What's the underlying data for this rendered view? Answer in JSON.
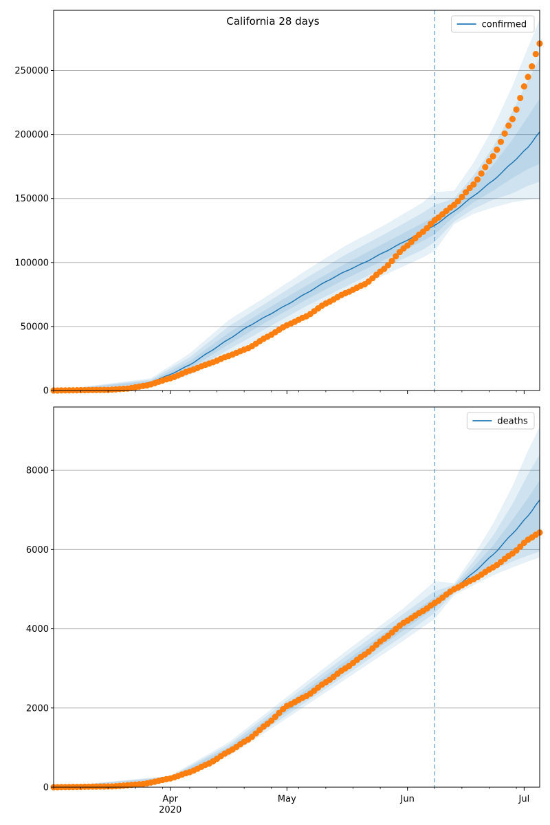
{
  "title": "California 28 days",
  "colors": {
    "model": "#1f77b4",
    "observed": "#ff7f0e",
    "band": "#1f77b4",
    "grid": "#b0b0b0",
    "axis": "#000000"
  },
  "chart_data": [
    {
      "type": "line",
      "title": "California 28 days",
      "legend": [
        "confirmed"
      ],
      "legend_position": "top-right",
      "grid": "horizontal",
      "x_start": "2020-03-02",
      "x_end": "2020-07-05",
      "xlim": [
        "2020-03-02",
        "2020-07-05"
      ],
      "ylim": [
        0,
        297000
      ],
      "y_ticks": [
        0,
        50000,
        100000,
        150000,
        200000,
        250000
      ],
      "x_ticks": [
        {
          "date": "2020-04-01",
          "label": "Apr",
          "sublabel": "2020"
        },
        {
          "date": "2020-05-01",
          "label": "May",
          "sublabel": ""
        },
        {
          "date": "2020-06-01",
          "label": "Jun",
          "sublabel": ""
        },
        {
          "date": "2020-07-01",
          "label": "Jul",
          "sublabel": ""
        }
      ],
      "forecast_start": "2020-06-08",
      "model_line": [
        [
          "2020-03-02",
          0
        ],
        [
          "2020-03-12",
          200
        ],
        [
          "2020-03-21",
          2000
        ],
        [
          "2020-03-27",
          6500
        ],
        [
          "2020-04-01",
          12500
        ],
        [
          "2020-04-06",
          20000
        ],
        [
          "2020-04-11",
          30000
        ],
        [
          "2020-04-16",
          40000
        ],
        [
          "2020-04-21",
          50000
        ],
        [
          "2020-04-26",
          58500
        ],
        [
          "2020-05-01",
          67000
        ],
        [
          "2020-05-06",
          76000
        ],
        [
          "2020-05-11",
          85000
        ],
        [
          "2020-05-16",
          93000
        ],
        [
          "2020-05-21",
          100000
        ],
        [
          "2020-05-26",
          108000
        ],
        [
          "2020-05-31",
          116000
        ],
        [
          "2020-06-05",
          124000
        ],
        [
          "2020-06-08",
          129000
        ],
        [
          "2020-06-13",
          140000
        ],
        [
          "2020-06-18",
          152000
        ],
        [
          "2020-06-23",
          164000
        ],
        [
          "2020-06-28",
          178000
        ],
        [
          "2020-07-02",
          190000
        ],
        [
          "2020-07-05",
          202000
        ]
      ],
      "band_inner": [
        [
          "2020-03-02",
          0,
          0
        ],
        [
          "2020-03-27",
          5500,
          7500
        ],
        [
          "2020-04-06",
          17000,
          23000
        ],
        [
          "2020-04-16",
          36000,
          45000
        ],
        [
          "2020-04-26",
          54000,
          64000
        ],
        [
          "2020-05-06",
          71000,
          82000
        ],
        [
          "2020-05-16",
          87000,
          99000
        ],
        [
          "2020-05-26",
          102000,
          115000
        ],
        [
          "2020-06-05",
          117000,
          131000
        ],
        [
          "2020-06-08",
          122000,
          136000
        ],
        [
          "2020-06-13",
          136000,
          145000
        ],
        [
          "2020-06-18",
          147000,
          160000
        ],
        [
          "2020-06-23",
          156000,
          176000
        ],
        [
          "2020-06-28",
          166000,
          196000
        ],
        [
          "2020-07-02",
          173000,
          214000
        ],
        [
          "2020-07-05",
          177000,
          228000
        ]
      ],
      "band_mid": [
        [
          "2020-03-02",
          0,
          0
        ],
        [
          "2020-03-27",
          4800,
          8500
        ],
        [
          "2020-04-06",
          14500,
          26000
        ],
        [
          "2020-04-16",
          32000,
          50000
        ],
        [
          "2020-04-26",
          49000,
          69000
        ],
        [
          "2020-05-06",
          66000,
          88000
        ],
        [
          "2020-05-16",
          81000,
          106000
        ],
        [
          "2020-05-26",
          96000,
          122000
        ],
        [
          "2020-06-05",
          110000,
          139000
        ],
        [
          "2020-06-08",
          116000,
          145000
        ],
        [
          "2020-06-13",
          132000,
          150000
        ],
        [
          "2020-06-18",
          142000,
          168000
        ],
        [
          "2020-06-23",
          149000,
          190000
        ],
        [
          "2020-06-28",
          154000,
          218000
        ],
        [
          "2020-07-02",
          160000,
          242000
        ],
        [
          "2020-07-05",
          163000,
          260000
        ]
      ],
      "band_outer": [
        [
          "2020-03-02",
          0,
          0
        ],
        [
          "2020-03-27",
          4000,
          9500
        ],
        [
          "2020-04-06",
          12000,
          29000
        ],
        [
          "2020-04-16",
          28000,
          55000
        ],
        [
          "2020-04-26",
          44000,
          74000
        ],
        [
          "2020-05-06",
          61000,
          94000
        ],
        [
          "2020-05-16",
          76000,
          113000
        ],
        [
          "2020-05-26",
          90000,
          129000
        ],
        [
          "2020-06-05",
          104000,
          147000
        ],
        [
          "2020-06-08",
          109000,
          155000
        ],
        [
          "2020-06-13",
          130000,
          156000
        ],
        [
          "2020-06-18",
          138000,
          178000
        ],
        [
          "2020-06-23",
          143000,
          205000
        ],
        [
          "2020-06-28",
          147000,
          238000
        ],
        [
          "2020-07-02",
          149000,
          268000
        ],
        [
          "2020-07-05",
          150000,
          290000
        ]
      ],
      "observed": [
        [
          "2020-03-02",
          0
        ],
        [
          "2020-03-16",
          500
        ],
        [
          "2020-03-21",
          1500
        ],
        [
          "2020-03-26",
          4000
        ],
        [
          "2020-04-01",
          9500
        ],
        [
          "2020-04-06",
          15500
        ],
        [
          "2020-04-11",
          21000
        ],
        [
          "2020-04-16",
          27000
        ],
        [
          "2020-04-21",
          33000
        ],
        [
          "2020-04-26",
          42000
        ],
        [
          "2020-05-01",
          51000
        ],
        [
          "2020-05-06",
          58000
        ],
        [
          "2020-05-11",
          68000
        ],
        [
          "2020-05-16",
          76000
        ],
        [
          "2020-05-21",
          83000
        ],
        [
          "2020-05-26",
          95000
        ],
        [
          "2020-05-31",
          111000
        ],
        [
          "2020-06-05",
          124000
        ],
        [
          "2020-06-08",
          133000
        ],
        [
          "2020-06-13",
          145000
        ],
        [
          "2020-06-18",
          161000
        ],
        [
          "2020-06-23",
          183000
        ],
        [
          "2020-06-28",
          212000
        ],
        [
          "2020-07-02",
          245000
        ],
        [
          "2020-07-05",
          271000
        ]
      ]
    },
    {
      "type": "line",
      "title": "",
      "legend": [
        "deaths"
      ],
      "legend_position": "top-right",
      "grid": "horizontal",
      "x_start": "2020-03-02",
      "x_end": "2020-07-05",
      "xlim": [
        "2020-03-02",
        "2020-07-05"
      ],
      "ylim": [
        0,
        9600
      ],
      "y_ticks": [
        0,
        2000,
        4000,
        6000,
        8000
      ],
      "x_ticks": [
        {
          "date": "2020-04-01",
          "label": "Apr",
          "sublabel": "2020"
        },
        {
          "date": "2020-05-01",
          "label": "May",
          "sublabel": ""
        },
        {
          "date": "2020-06-01",
          "label": "Jun",
          "sublabel": ""
        },
        {
          "date": "2020-07-01",
          "label": "Jul",
          "sublabel": ""
        }
      ],
      "forecast_start": "2020-06-08",
      "model_line": [
        [
          "2020-03-02",
          0
        ],
        [
          "2020-03-17",
          30
        ],
        [
          "2020-03-25",
          100
        ],
        [
          "2020-04-01",
          230
        ],
        [
          "2020-04-06",
          380
        ],
        [
          "2020-04-11",
          620
        ],
        [
          "2020-04-16",
          950
        ],
        [
          "2020-04-21",
          1250
        ],
        [
          "2020-04-26",
          1600
        ],
        [
          "2020-05-01",
          2000
        ],
        [
          "2020-05-06",
          2350
        ],
        [
          "2020-05-11",
          2700
        ],
        [
          "2020-05-16",
          3050
        ],
        [
          "2020-05-21",
          3400
        ],
        [
          "2020-05-26",
          3750
        ],
        [
          "2020-05-31",
          4100
        ],
        [
          "2020-06-05",
          4450
        ],
        [
          "2020-06-08",
          4650
        ],
        [
          "2020-06-13",
          5000
        ],
        [
          "2020-06-18",
          5420
        ],
        [
          "2020-06-23",
          5870
        ],
        [
          "2020-06-28",
          6400
        ],
        [
          "2020-07-02",
          6850
        ],
        [
          "2020-07-05",
          7250
        ]
      ],
      "band_inner": [
        [
          "2020-03-02",
          0,
          0
        ],
        [
          "2020-04-01",
          210,
          250
        ],
        [
          "2020-04-16",
          900,
          1010
        ],
        [
          "2020-05-01",
          1900,
          2100
        ],
        [
          "2020-05-16",
          2920,
          3180
        ],
        [
          "2020-05-31",
          3960,
          4240
        ],
        [
          "2020-06-08",
          4530,
          4800
        ],
        [
          "2020-06-13",
          4940,
          5070
        ],
        [
          "2020-06-18",
          5300,
          5560
        ],
        [
          "2020-06-23",
          5650,
          6100
        ],
        [
          "2020-06-28",
          5980,
          6750
        ],
        [
          "2020-07-02",
          6220,
          7300
        ],
        [
          "2020-07-05",
          6400,
          7750
        ]
      ],
      "band_mid": [
        [
          "2020-03-02",
          0,
          0
        ],
        [
          "2020-04-01",
          195,
          270
        ],
        [
          "2020-04-16",
          840,
          1070
        ],
        [
          "2020-05-01",
          1820,
          2190
        ],
        [
          "2020-05-16",
          2820,
          3300
        ],
        [
          "2020-05-31",
          3830,
          4380
        ],
        [
          "2020-06-08",
          4400,
          4950
        ],
        [
          "2020-06-13",
          4900,
          5110
        ],
        [
          "2020-06-18",
          5200,
          5700
        ],
        [
          "2020-06-23",
          5480,
          6350
        ],
        [
          "2020-06-28",
          5700,
          7150
        ],
        [
          "2020-07-02",
          5850,
          7900
        ],
        [
          "2020-07-05",
          5950,
          8400
        ]
      ],
      "band_outer": [
        [
          "2020-03-02",
          0,
          0
        ],
        [
          "2020-04-01",
          180,
          290
        ],
        [
          "2020-04-16",
          780,
          1130
        ],
        [
          "2020-05-01",
          1740,
          2280
        ],
        [
          "2020-05-16",
          2720,
          3420
        ],
        [
          "2020-05-31",
          3700,
          4520
        ],
        [
          "2020-06-08",
          4250,
          5200
        ],
        [
          "2020-06-13",
          4850,
          5150
        ],
        [
          "2020-06-18",
          5100,
          5850
        ],
        [
          "2020-06-23",
          5350,
          6650
        ],
        [
          "2020-06-28",
          5550,
          7600
        ],
        [
          "2020-07-02",
          5700,
          8500
        ],
        [
          "2020-07-05",
          5800,
          9100
        ]
      ],
      "observed": [
        [
          "2020-03-02",
          0
        ],
        [
          "2020-03-17",
          20
        ],
        [
          "2020-03-25",
          80
        ],
        [
          "2020-04-01",
          220
        ],
        [
          "2020-04-06",
          380
        ],
        [
          "2020-04-11",
          600
        ],
        [
          "2020-04-16",
          900
        ],
        [
          "2020-04-21",
          1200
        ],
        [
          "2020-04-26",
          1600
        ],
        [
          "2020-05-01",
          2050
        ],
        [
          "2020-05-06",
          2300
        ],
        [
          "2020-05-11",
          2650
        ],
        [
          "2020-05-16",
          3000
        ],
        [
          "2020-05-21",
          3350
        ],
        [
          "2020-05-26",
          3750
        ],
        [
          "2020-05-31",
          4150
        ],
        [
          "2020-06-05",
          4450
        ],
        [
          "2020-06-08",
          4650
        ],
        [
          "2020-06-13",
          5000
        ],
        [
          "2020-06-18",
          5250
        ],
        [
          "2020-06-23",
          5550
        ],
        [
          "2020-06-28",
          5900
        ],
        [
          "2020-07-02",
          6250
        ],
        [
          "2020-07-05",
          6430
        ]
      ]
    }
  ]
}
